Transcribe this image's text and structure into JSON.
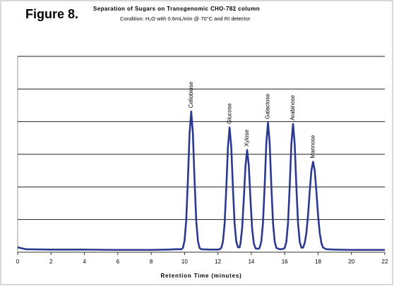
{
  "chart_data": {
    "type": "line",
    "figure_label": "Figure 8.",
    "title": "Separation of Sugars on Transgenomic CHO-782 column",
    "subtitle": "Condition: H₂O with 0.6mL/min @ 70°C and RI detector",
    "x_label": "Retention Time (minutes)",
    "color": "#2b3990",
    "xlim": [
      0,
      22
    ],
    "xticks": [
      0,
      2,
      4,
      6,
      8,
      10,
      12,
      14,
      16,
      18,
      20,
      22
    ],
    "ylim": [
      0,
      6
    ],
    "yticks": [
      0,
      1,
      2,
      3,
      4,
      5,
      6
    ],
    "ytick_labels": false,
    "grid": true,
    "x": [
      0,
      0.5,
      2,
      4,
      6,
      8,
      9,
      9.5,
      9.8,
      9.9,
      10.0,
      10.1,
      10.2,
      10.3,
      10.4,
      10.5,
      10.6,
      10.7,
      10.8,
      10.9,
      11.0,
      11.5,
      12.0,
      12.1,
      12.2,
      12.3,
      12.4,
      12.5,
      12.6,
      12.7,
      12.8,
      12.9,
      13.0,
      13.1,
      13.2,
      13.3,
      13.35,
      13.45,
      13.55,
      13.65,
      13.75,
      13.85,
      13.95,
      14.05,
      14.15,
      14.25,
      14.4,
      14.5,
      14.6,
      14.7,
      14.8,
      14.9,
      15.0,
      15.1,
      15.2,
      15.3,
      15.4,
      15.5,
      15.7,
      15.9,
      16.0,
      16.1,
      16.2,
      16.3,
      16.4,
      16.5,
      16.6,
      16.7,
      16.8,
      16.9,
      17.0,
      17.1,
      17.2,
      17.3,
      17.4,
      17.5,
      17.6,
      17.7,
      17.8,
      17.9,
      18.0,
      18.1,
      18.2,
      18.3,
      18.5,
      19,
      20,
      22
    ],
    "values": [
      0.15,
      0.09,
      0.08,
      0.08,
      0.07,
      0.07,
      0.08,
      0.09,
      0.09,
      0.13,
      0.35,
      0.97,
      2.2,
      3.63,
      4.31,
      3.63,
      2.2,
      0.97,
      0.35,
      0.13,
      0.09,
      0.08,
      0.08,
      0.09,
      0.13,
      0.32,
      0.87,
      1.95,
      3.22,
      3.82,
      3.22,
      1.95,
      0.87,
      0.32,
      0.15,
      0.15,
      0.27,
      0.72,
      1.61,
      2.64,
      3.13,
      2.64,
      1.61,
      0.72,
      0.27,
      0.12,
      0.1,
      0.13,
      0.33,
      0.9,
      2.03,
      3.35,
      3.97,
      3.35,
      2.03,
      0.9,
      0.33,
      0.13,
      0.09,
      0.1,
      0.13,
      0.32,
      0.89,
      2.01,
      3.31,
      3.93,
      3.31,
      2.01,
      0.89,
      0.32,
      0.14,
      0.14,
      0.28,
      0.59,
      1.13,
      1.86,
      2.5,
      2.77,
      2.5,
      1.86,
      1.13,
      0.59,
      0.28,
      0.14,
      0.09,
      0.08,
      0.07,
      0.07
    ],
    "peak_labels": [
      {
        "text": "Cellobiose",
        "x": 10.4
      },
      {
        "text": "Glucose",
        "x": 12.7
      },
      {
        "text": "Xylose",
        "x": 13.75
      },
      {
        "text": "Galactose",
        "x": 15.0
      },
      {
        "text": "Arabinose",
        "x": 16.5
      },
      {
        "text": "Mannose",
        "x": 17.7
      }
    ]
  }
}
